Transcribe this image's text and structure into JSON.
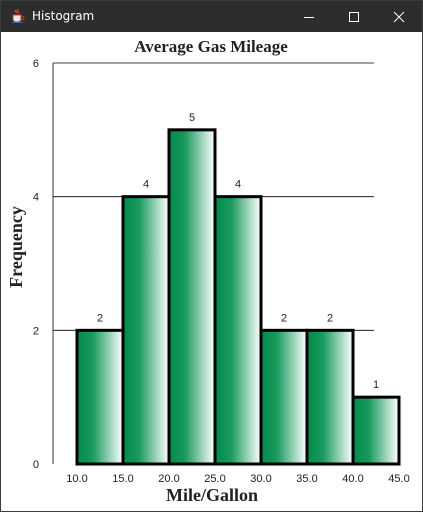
{
  "window": {
    "title": "Histogram",
    "icon": "java-cup-icon",
    "controls": [
      "minimize-icon",
      "maximize-icon",
      "close-icon"
    ]
  },
  "chart_data": {
    "type": "bar",
    "title": "Average Gas Mileage",
    "xlabel": "Mile/Gallon",
    "ylabel": "Frequency",
    "bins": [
      {
        "from": 10.0,
        "to": 15.0,
        "value": 2
      },
      {
        "from": 15.0,
        "to": 20.0,
        "value": 4
      },
      {
        "from": 20.0,
        "to": 25.0,
        "value": 5
      },
      {
        "from": 25.0,
        "to": 30.0,
        "value": 4
      },
      {
        "from": 30.0,
        "to": 35.0,
        "value": 2
      },
      {
        "from": 35.0,
        "to": 40.0,
        "value": 2
      },
      {
        "from": 40.0,
        "to": 45.0,
        "value": 1
      }
    ],
    "x_ticks": [
      "10.0",
      "15.0",
      "20.0",
      "25.0",
      "30.0",
      "35.0",
      "40.0",
      "45.0"
    ],
    "y_ticks": [
      "0",
      "2",
      "4",
      "6"
    ],
    "ylim": [
      0,
      6
    ],
    "xlim": [
      10,
      45
    ],
    "grid": true,
    "data_labels": true,
    "colors": {
      "bar_dark": "#008a4a",
      "bar_light": "#ffffff",
      "bar_edge": "#000000"
    }
  }
}
